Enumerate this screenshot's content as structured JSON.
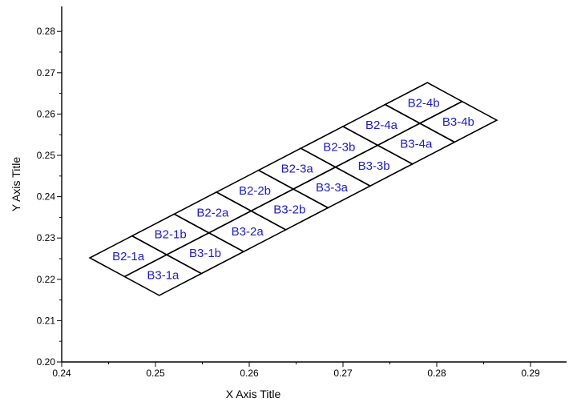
{
  "chart_data": {
    "type": "grid-cells",
    "xlabel": "X Axis Title",
    "ylabel": "Y Axis Title",
    "xlim": [
      0.24,
      0.295
    ],
    "ylim": [
      0.2,
      0.286
    ],
    "xticks": [
      "0.24",
      "0.25",
      "0.26",
      "0.27",
      "0.28",
      "0.29"
    ],
    "yticks": [
      "0.20",
      "0.21",
      "0.22",
      "0.23",
      "0.24",
      "0.25",
      "0.26",
      "0.27",
      "0.28"
    ],
    "label_color": "#1a1ad6",
    "grid_origin": [
      0.243,
      0.2252
    ],
    "col_step": [
      0.0045,
      0.0053
    ],
    "row_step": [
      0.0037,
      -0.00455
    ],
    "cells": [
      {
        "label": "B2-1a",
        "row": 0,
        "col": 0
      },
      {
        "label": "B2-1b",
        "row": 0,
        "col": 1
      },
      {
        "label": "B2-2a",
        "row": 0,
        "col": 2
      },
      {
        "label": "B2-2b",
        "row": 0,
        "col": 3
      },
      {
        "label": "B2-3a",
        "row": 0,
        "col": 4
      },
      {
        "label": "B2-3b",
        "row": 0,
        "col": 5
      },
      {
        "label": "B2-4a",
        "row": 0,
        "col": 6
      },
      {
        "label": "B2-4b",
        "row": 0,
        "col": 7
      },
      {
        "label": "B3-1a",
        "row": 1,
        "col": 0
      },
      {
        "label": "B3-1b",
        "row": 1,
        "col": 1
      },
      {
        "label": "B3-2a",
        "row": 1,
        "col": 2
      },
      {
        "label": "B3-2b",
        "row": 1,
        "col": 3
      },
      {
        "label": "B3-3a",
        "row": 1,
        "col": 4
      },
      {
        "label": "B3-3b",
        "row": 1,
        "col": 5
      },
      {
        "label": "B3-4a",
        "row": 1,
        "col": 6
      },
      {
        "label": "B3-4b",
        "row": 1,
        "col": 7
      }
    ]
  }
}
